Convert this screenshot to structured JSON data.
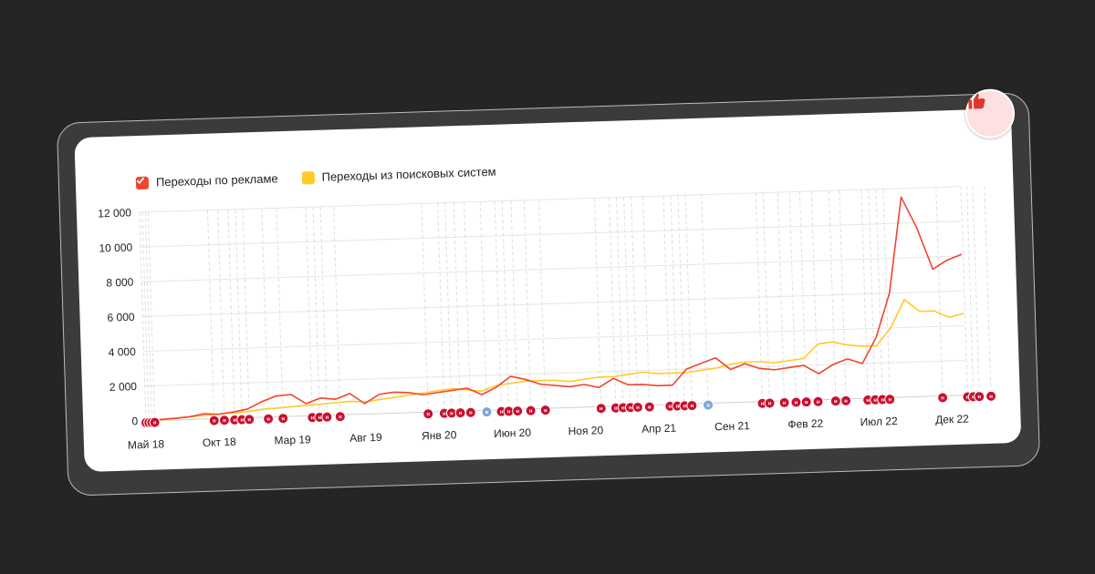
{
  "badge": {
    "icon": "thumbs-up-icon"
  },
  "legend": {
    "items": [
      {
        "label": "Переходы по рекламе",
        "color": "#F0452F"
      },
      {
        "label": "Переходы из поисковых систем",
        "color": "#FFC928"
      }
    ]
  },
  "chart_data": {
    "type": "line",
    "y_ticks": [
      "0",
      "2 000",
      "4 000",
      "6 000",
      "8 000",
      "10 000",
      "12 000"
    ],
    "ylim": [
      0,
      12000
    ],
    "x_ticks": [
      "Май 18",
      "Окт 18",
      "Мар 19",
      "Авг 19",
      "Янв 20",
      "Июн 20",
      "Ноя 20",
      "Апр 21",
      "Сен 21",
      "Фев 22",
      "Июл 22",
      "Дек 22"
    ],
    "x_tick_month_index": [
      0,
      5,
      10,
      15,
      20,
      25,
      30,
      35,
      40,
      45,
      50,
      55
    ],
    "grid": true,
    "series": [
      {
        "name": "Переходы по рекламе",
        "color": "#F0452F",
        "values": [
          0,
          50,
          100,
          150,
          300,
          250,
          350,
          500,
          900,
          1200,
          1250,
          700,
          1000,
          900,
          1200,
          600,
          1100,
          1200,
          1150,
          1000,
          1100,
          1200,
          1300,
          900,
          1300,
          1900,
          1700,
          1400,
          1300,
          1200,
          1300,
          1100,
          1600,
          1200,
          1200,
          1100,
          1100,
          2000,
          2300,
          2600,
          1900,
          2200,
          1900,
          1800,
          1900,
          2000,
          1500,
          2000,
          2300,
          2000,
          3500,
          6000,
          11500,
          9700,
          7300,
          7800,
          8100
        ]
      },
      {
        "name": "Переходы из поисковых систем",
        "color": "#FFC928",
        "values": [
          0,
          30,
          80,
          150,
          200,
          250,
          300,
          350,
          450,
          500,
          550,
          600,
          650,
          700,
          750,
          700,
          800,
          900,
          1000,
          1100,
          1200,
          1300,
          1200,
          1100,
          1400,
          1500,
          1600,
          1600,
          1600,
          1500,
          1600,
          1700,
          1700,
          1800,
          1900,
          1800,
          1800,
          1800,
          1900,
          2000,
          2200,
          2300,
          2300,
          2200,
          2300,
          2400,
          3200,
          3300,
          3100,
          3000,
          3000,
          4000,
          5600,
          4900,
          4900,
          4500,
          4700
        ]
      }
    ],
    "events": [
      {
        "m": 0.05,
        "t": "н"
      },
      {
        "m": 0.25,
        "t": "н"
      },
      {
        "m": 0.45,
        "t": "н"
      },
      {
        "m": 0.65,
        "t": "н"
      },
      {
        "m": 4.7,
        "t": "н"
      },
      {
        "m": 5.4,
        "t": "н"
      },
      {
        "m": 6.1,
        "t": "н"
      },
      {
        "m": 6.6,
        "t": "н"
      },
      {
        "m": 7.1,
        "t": "н"
      },
      {
        "m": 8.4,
        "t": "н"
      },
      {
        "m": 9.4,
        "t": "н"
      },
      {
        "m": 11.4,
        "t": "н"
      },
      {
        "m": 11.9,
        "t": "н"
      },
      {
        "m": 12.4,
        "t": "н"
      },
      {
        "m": 13.3,
        "t": "н"
      },
      {
        "m": 19.3,
        "t": "н"
      },
      {
        "m": 20.4,
        "t": "н"
      },
      {
        "m": 20.9,
        "t": "н"
      },
      {
        "m": 21.5,
        "t": "н"
      },
      {
        "m": 22.2,
        "t": "н"
      },
      {
        "m": 23.3,
        "t": "в"
      },
      {
        "m": 24.3,
        "t": "н"
      },
      {
        "m": 24.8,
        "t": "н"
      },
      {
        "m": 25.4,
        "t": "н"
      },
      {
        "m": 26.3,
        "t": "н"
      },
      {
        "m": 27.3,
        "t": "н"
      },
      {
        "m": 31.1,
        "t": "н"
      },
      {
        "m": 32.1,
        "t": "н"
      },
      {
        "m": 32.6,
        "t": "н"
      },
      {
        "m": 33.1,
        "t": "н"
      },
      {
        "m": 33.6,
        "t": "н"
      },
      {
        "m": 34.4,
        "t": "н"
      },
      {
        "m": 35.8,
        "t": "н"
      },
      {
        "m": 36.3,
        "t": "н"
      },
      {
        "m": 36.8,
        "t": "н"
      },
      {
        "m": 37.3,
        "t": "н"
      },
      {
        "m": 38.4,
        "t": "в"
      },
      {
        "m": 42.1,
        "t": "н"
      },
      {
        "m": 42.6,
        "t": "н"
      },
      {
        "m": 43.6,
        "t": "н"
      },
      {
        "m": 44.4,
        "t": "н"
      },
      {
        "m": 45.1,
        "t": "н"
      },
      {
        "m": 45.9,
        "t": "н"
      },
      {
        "m": 47.1,
        "t": "н"
      },
      {
        "m": 47.8,
        "t": "н"
      },
      {
        "m": 49.3,
        "t": "н"
      },
      {
        "m": 49.8,
        "t": "н"
      },
      {
        "m": 50.3,
        "t": "н"
      },
      {
        "m": 50.8,
        "t": "н"
      },
      {
        "m": 54.4,
        "t": "н"
      },
      {
        "m": 56.1,
        "t": "н"
      },
      {
        "m": 56.5,
        "t": "н"
      },
      {
        "m": 56.9,
        "t": "н"
      },
      {
        "m": 57.7,
        "t": "н"
      }
    ]
  }
}
